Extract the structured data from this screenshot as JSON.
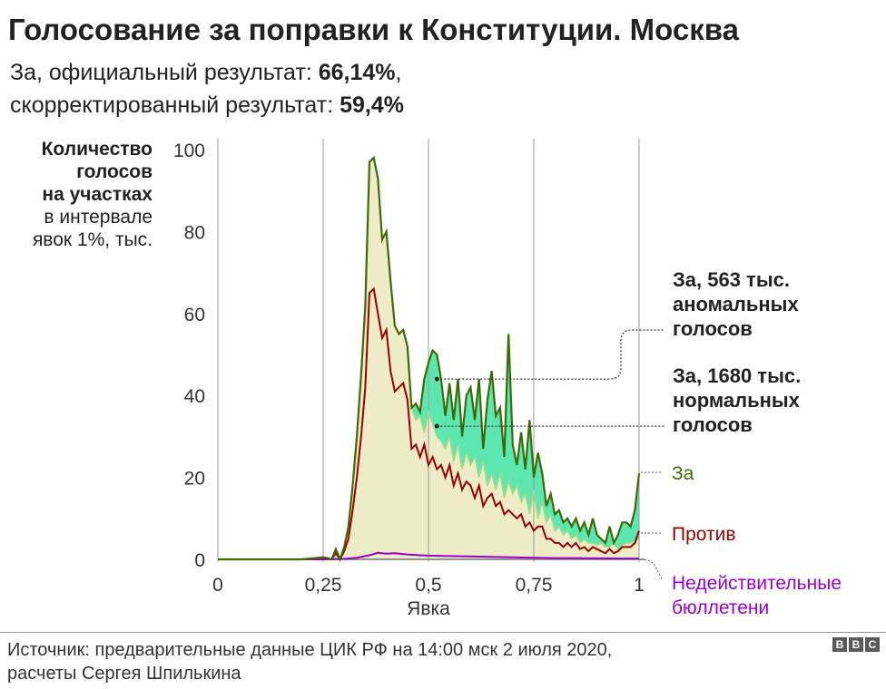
{
  "header": {
    "title": "Голосование за поправки к Конституции. Москва",
    "sub1_prefix": "За, официальный результат: ",
    "sub1_value": "66,14%",
    "sub1_suffix": ",",
    "sub2_prefix": "скорректированный результат: ",
    "sub2_value": "59,4%"
  },
  "ylabel": {
    "bold": [
      "Количество",
      "голосов",
      "на участках"
    ],
    "normal": [
      "в интервале",
      "явок 1%, тыс."
    ]
  },
  "footer": {
    "source_line1": "Источник: предварительные данные ЦИК РФ на 14:00 мск 2 июля 2020,",
    "source_line2": "расчеты Сергея Шпилькина",
    "logo": [
      "B",
      "B",
      "C"
    ]
  },
  "colors": {
    "za_line": "#3b6b06",
    "protiv_line": "#990000",
    "invalid_line": "#9900cc",
    "beige_fill": "#eeecc6",
    "anomaly_fill": "#5ee6b0",
    "normal_fill": "#9edc8c"
  },
  "chart_data": {
    "type": "area",
    "xlabel": "Явка",
    "xlim": [
      0,
      1
    ],
    "ylim": [
      0,
      100
    ],
    "xticks": [
      0,
      0.25,
      0.5,
      0.75,
      1
    ],
    "xtick_labels": [
      "0",
      "0,25",
      "0,5",
      "0,75",
      "1"
    ],
    "yticks": [
      0,
      20,
      40,
      60,
      80,
      100
    ],
    "ytick_labels": [
      "0",
      "20",
      "40",
      "60",
      "80",
      "100"
    ],
    "grid": "vertical",
    "annotations": [
      {
        "lines": [
          "За, 563 тыс.",
          "аномальных",
          "голосов"
        ],
        "point": [
          0.52,
          44
        ]
      },
      {
        "lines": [
          "За, 1680 тыс.",
          "нормальных",
          "голосов"
        ],
        "point": [
          0.52,
          32.5
        ]
      }
    ],
    "series": [
      {
        "name": "За",
        "x": [
          0,
          0.2,
          0.25,
          0.26,
          0.27,
          0.28,
          0.29,
          0.3,
          0.31,
          0.32,
          0.33,
          0.34,
          0.35,
          0.36,
          0.37,
          0.38,
          0.39,
          0.4,
          0.41,
          0.42,
          0.43,
          0.44,
          0.45,
          0.46,
          0.47,
          0.48,
          0.49,
          0.5,
          0.51,
          0.52,
          0.53,
          0.54,
          0.55,
          0.56,
          0.57,
          0.58,
          0.59,
          0.6,
          0.61,
          0.62,
          0.63,
          0.64,
          0.65,
          0.66,
          0.67,
          0.68,
          0.69,
          0.7,
          0.71,
          0.72,
          0.73,
          0.74,
          0.75,
          0.76,
          0.77,
          0.78,
          0.79,
          0.8,
          0.81,
          0.82,
          0.83,
          0.84,
          0.85,
          0.86,
          0.87,
          0.88,
          0.89,
          0.9,
          0.91,
          0.92,
          0.93,
          0.94,
          0.95,
          0.96,
          0.97,
          0.98,
          0.99,
          1
        ],
        "values": [
          0,
          0,
          0.5,
          0.3,
          0,
          2.5,
          0,
          3,
          8,
          18,
          30,
          45,
          62,
          97,
          98,
          93,
          78,
          80,
          68,
          57,
          55,
          56,
          52,
          37,
          38,
          36,
          44,
          48,
          51,
          50,
          44,
          35,
          43,
          34,
          44,
          30,
          40,
          42,
          34,
          44,
          27,
          39,
          46,
          35,
          37,
          25,
          55,
          28,
          23,
          31,
          22,
          34,
          20,
          26,
          21,
          13,
          16,
          11,
          12,
          9,
          10,
          8,
          10,
          7,
          9,
          6,
          10,
          6,
          5,
          4,
          8,
          4,
          6,
          9,
          9,
          8,
          12,
          21
        ]
      },
      {
        "name": "Против",
        "x": [
          0,
          0.2,
          0.25,
          0.26,
          0.27,
          0.28,
          0.29,
          0.3,
          0.31,
          0.32,
          0.33,
          0.34,
          0.35,
          0.36,
          0.37,
          0.38,
          0.39,
          0.4,
          0.41,
          0.42,
          0.43,
          0.44,
          0.45,
          0.46,
          0.47,
          0.48,
          0.49,
          0.5,
          0.51,
          0.52,
          0.53,
          0.54,
          0.55,
          0.56,
          0.57,
          0.58,
          0.59,
          0.6,
          0.61,
          0.62,
          0.63,
          0.64,
          0.65,
          0.66,
          0.67,
          0.68,
          0.69,
          0.7,
          0.71,
          0.72,
          0.73,
          0.74,
          0.75,
          0.76,
          0.77,
          0.78,
          0.79,
          0.8,
          0.81,
          0.82,
          0.83,
          0.84,
          0.85,
          0.86,
          0.87,
          0.88,
          0.89,
          0.9,
          0.91,
          0.92,
          0.93,
          0.94,
          0.95,
          0.96,
          0.97,
          0.98,
          0.99,
          1
        ],
        "values": [
          0,
          0,
          0.3,
          0.2,
          0,
          1.5,
          0,
          2,
          5,
          12,
          20,
          30,
          42,
          65,
          66,
          60,
          54,
          56,
          46,
          41,
          42,
          43,
          39,
          27,
          28,
          25,
          28,
          23,
          25,
          22,
          23,
          20,
          23,
          18,
          21,
          17,
          19,
          18,
          15,
          18,
          13,
          15,
          16,
          13,
          14,
          11,
          12,
          11,
          10,
          11,
          8,
          9,
          7,
          8,
          8,
          5,
          5,
          4,
          4,
          3,
          4,
          3,
          4,
          2.5,
          3,
          2,
          3,
          2.5,
          2,
          1.5,
          2.5,
          1.5,
          2,
          3,
          3,
          3,
          4,
          7
        ]
      },
      {
        "name": "Недействительные бюллетени",
        "x": [
          0,
          0.25,
          0.3,
          0.33,
          0.36,
          0.38,
          0.4,
          0.42,
          0.45,
          0.48,
          0.5,
          0.55,
          0.6,
          0.65,
          0.7,
          0.75,
          0.8,
          0.85,
          0.9,
          0.95,
          1
        ],
        "values": [
          0,
          0,
          0.1,
          0.4,
          1,
          1.6,
          1.4,
          1.5,
          1.2,
          1,
          0.9,
          0.8,
          0.7,
          0.6,
          0.5,
          0.4,
          0.3,
          0.3,
          0.25,
          0.2,
          0.2
        ]
      }
    ],
    "reference_curve": {
      "name": "Нормальные голоса За",
      "x": [
        0.46,
        0.47,
        0.48,
        0.49,
        0.5,
        0.51,
        0.52,
        0.53,
        0.54,
        0.55,
        0.56,
        0.57,
        0.58,
        0.59,
        0.6,
        0.61,
        0.62,
        0.63,
        0.64,
        0.65,
        0.66,
        0.67,
        0.68,
        0.69,
        0.7,
        0.71,
        0.72,
        0.73,
        0.74,
        0.75,
        0.76,
        0.77,
        0.78,
        0.79,
        0.8,
        0.81,
        0.82,
        0.83,
        0.84,
        0.85,
        0.86,
        0.87,
        0.88,
        0.89,
        0.9,
        0.91,
        0.92,
        0.93,
        0.94,
        0.95,
        0.96,
        0.97,
        0.98,
        0.99,
        1
      ],
      "values": [
        37,
        34,
        35,
        31,
        36,
        33,
        30,
        29,
        27,
        30,
        24,
        28,
        22,
        26,
        23,
        25,
        20,
        24,
        18,
        21,
        17,
        21,
        15,
        19,
        16,
        18,
        14,
        16,
        11,
        17,
        10,
        14,
        9,
        11,
        7,
        8,
        6,
        7,
        5,
        6,
        4,
        5,
        4,
        4,
        3.5,
        4,
        3,
        3,
        4,
        2.5,
        3.5,
        4,
        4,
        4.5,
        5
      ]
    }
  }
}
